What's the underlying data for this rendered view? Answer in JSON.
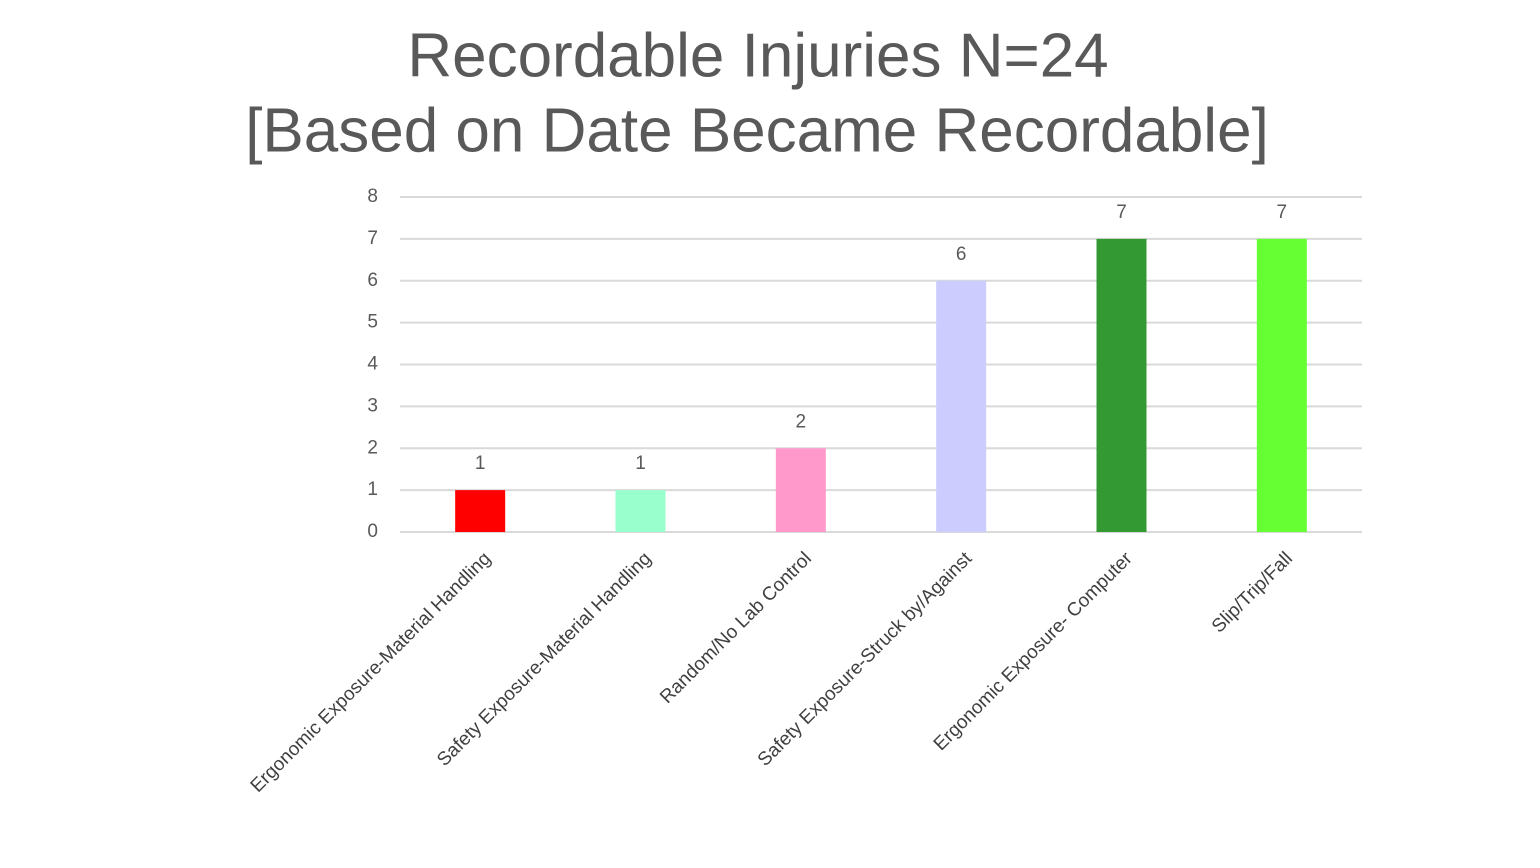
{
  "chart_data": {
    "type": "bar",
    "title": "Recordable Injuries N=24",
    "subtitle": "[Based on Date Became Recordable]",
    "categories": [
      "Ergonomic Exposure-Material Handling",
      "Safety Exposure-Material Handling",
      "Random/No Lab Control",
      "Safety Exposure-Struck by/Against",
      "Ergonomic Exposure- Computer",
      "Slip/Trip/Fall"
    ],
    "values": [
      1,
      1,
      2,
      6,
      7,
      7
    ],
    "colors": [
      "#ff0000",
      "#99ffcc",
      "#ff99cc",
      "#ccccff",
      "#339933",
      "#66ff33"
    ],
    "ylim": [
      0,
      8
    ],
    "yticks": [
      0,
      1,
      2,
      3,
      4,
      5,
      6,
      7,
      8
    ],
    "grid": true
  }
}
